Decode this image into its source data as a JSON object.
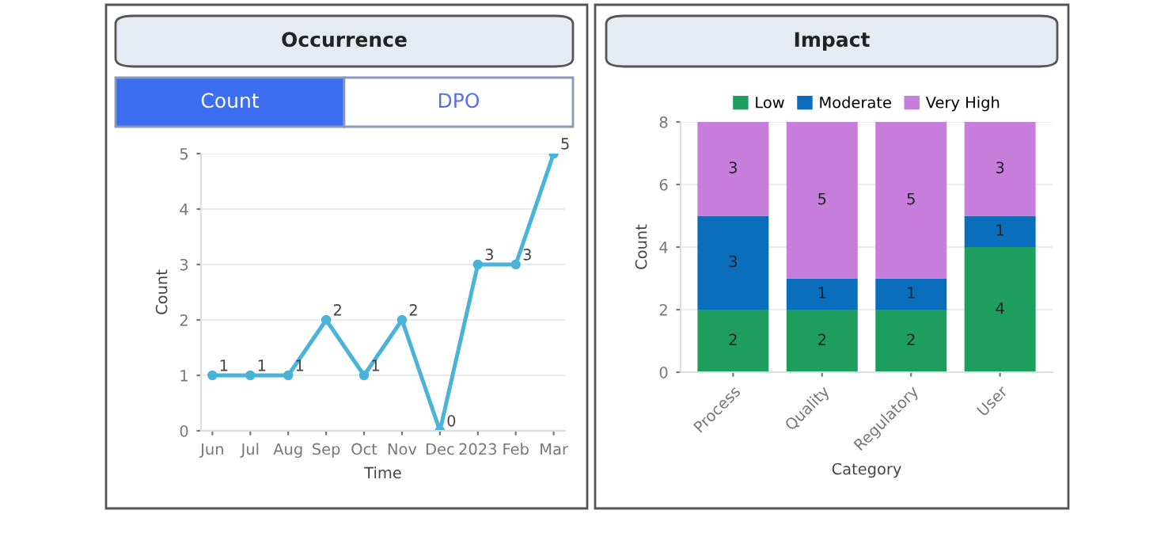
{
  "chart_data": [
    {
      "type": "line",
      "title": "Occurrence",
      "annotations": [
        "Count",
        "DPO"
      ],
      "xlabel": "Time",
      "ylabel": "Count",
      "categories": [
        "Jun",
        "Jul",
        "Aug",
        "Sep",
        "Oct",
        "Nov",
        "Dec",
        "2023",
        "Feb",
        "Mar"
      ],
      "series": [
        {
          "color": "#4ab3d8",
          "values": [
            1,
            1,
            1,
            2,
            1,
            2,
            0,
            3,
            3,
            5
          ]
        }
      ],
      "ylim": [
        0,
        5
      ],
      "yticks": [
        0,
        1,
        2,
        3,
        4,
        5
      ],
      "grid": "y",
      "marker": "circle",
      "line_style": "solid",
      "data_labels": true
    },
    {
      "type": "bar",
      "title": "Impact",
      "xlabel": "Category",
      "ylabel": "Count",
      "stacked": true,
      "categories": [
        "Process",
        "Quality",
        "Regulatory",
        "User"
      ],
      "series": [
        {
          "name": "Low",
          "color": "#1e9e5e",
          "values": [
            2,
            2,
            2,
            4
          ]
        },
        {
          "name": "Moderate",
          "color": "#0a6ebd",
          "values": [
            3,
            1,
            1,
            1
          ]
        },
        {
          "name": "Very High",
          "color": "#c77ddb",
          "values": [
            3,
            5,
            5,
            3
          ]
        }
      ],
      "ylim": [
        0,
        8
      ],
      "yticks": [
        0,
        2,
        4,
        6,
        8
      ],
      "grid": "y",
      "data_labels": true,
      "legend": "top"
    }
  ]
}
